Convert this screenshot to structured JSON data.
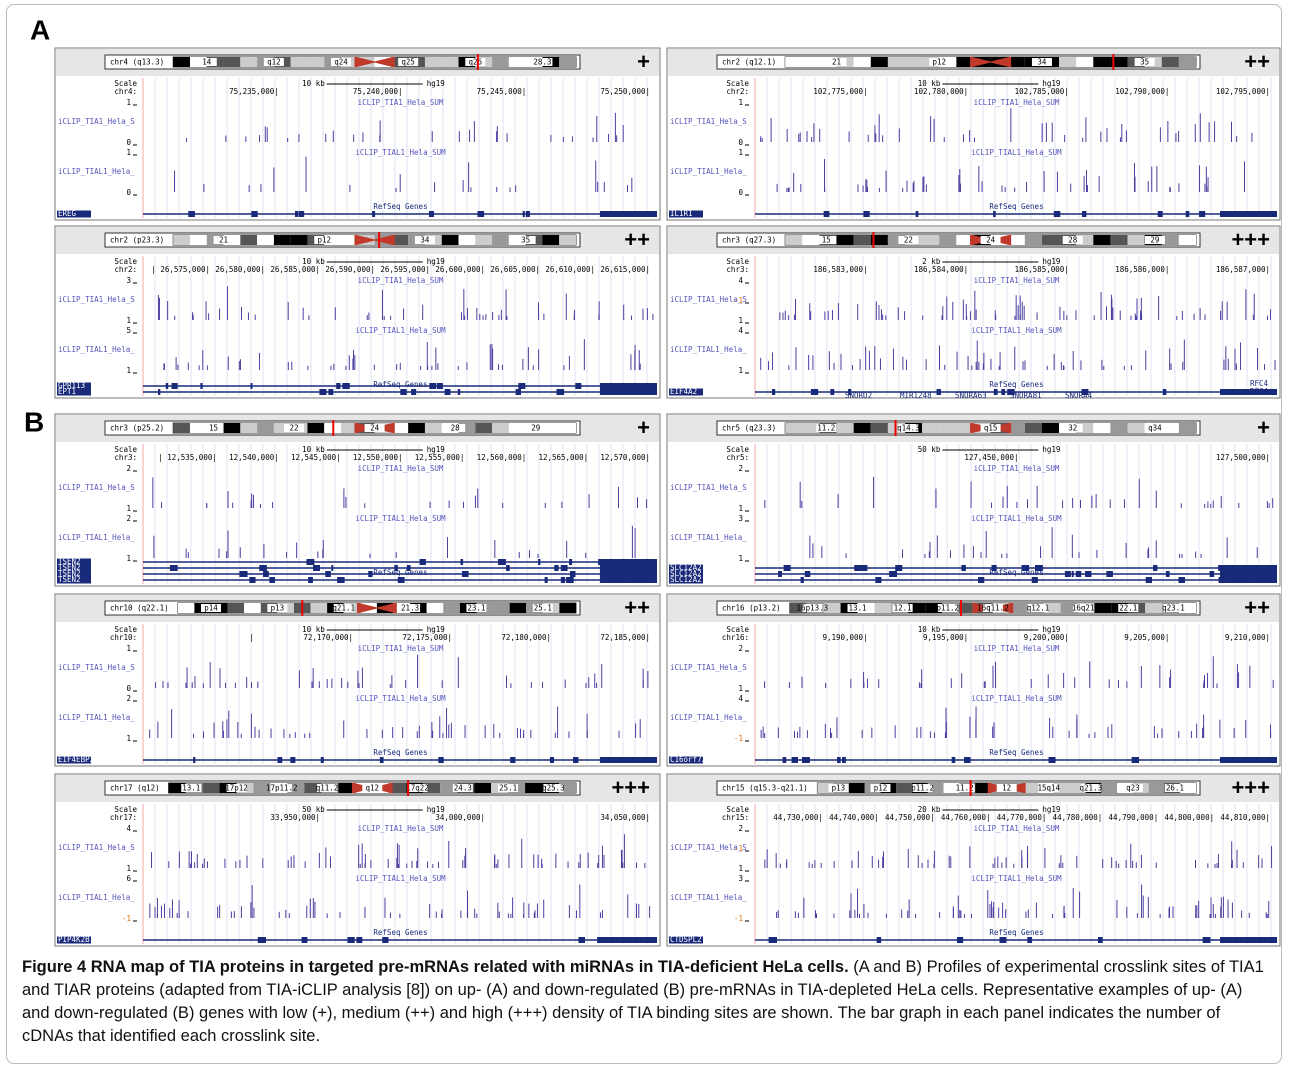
{
  "panel_labels": [
    "A",
    "B"
  ],
  "panels": [
    {
      "chrom": "chr4 (q13.3)",
      "density": "+",
      "bands": [
        "14",
        "q12",
        "q24",
        "q25",
        "q26",
        "28.3"
      ],
      "scale": "Scale",
      "scale_size": "10 kb",
      "assembly": "hg19",
      "chr": "chr4:",
      "positions": [
        "75,235,000|",
        "75,240,000|",
        "75,245,000|",
        "75,250,000|"
      ],
      "tracks": [
        {
          "name": "iCLIP_TIA1_Hela_SUM",
          "side": "iCLIP_TIA1_Hela_S",
          "axis": [
            "1",
            "0"
          ]
        },
        {
          "name": "iCLIP_TIAL1_Hela_SUM",
          "side": "iCLIP_TIAL1_Hela_",
          "axis": [
            "1",
            "0"
          ]
        }
      ],
      "refseq": "RefSeq Genes",
      "genes": [
        "EREG"
      ]
    },
    {
      "chrom": "chr2 (q12.1)",
      "density": "++",
      "bands": [
        "21",
        "p12",
        "34",
        "35"
      ],
      "scale": "Scale",
      "scale_size": "10 kb",
      "assembly": "hg19",
      "chr": "chr2:",
      "positions": [
        "102,775,000|",
        "102,780,000|",
        "102,785,000|",
        "102,790,000|",
        "102,795,000|"
      ],
      "tracks": [
        {
          "name": "iCLIP_TIA1_Hela_SUM",
          "side": "iCLIP_TIA1_Hela_S",
          "axis": [
            "1",
            "0"
          ]
        },
        {
          "name": "iCLIP_TIAL1_Hela_SUM",
          "side": "iCLIP_TIAL1_Hela_",
          "axis": [
            "1",
            "0"
          ]
        }
      ],
      "refseq": "RefSeq Genes",
      "genes": [
        "IL1R1"
      ]
    },
    {
      "chrom": "chr2 (p23.3)",
      "density": "++",
      "bands": [
        "21",
        "p12",
        "34",
        "35"
      ],
      "scale": "Scale",
      "scale_size": "10 kb",
      "assembly": "hg19",
      "chr": "chr2:",
      "positions": [
        "| 26,575,000|",
        "26,580,000|",
        "26,585,000|",
        "26,590,000|",
        "26,595,000|",
        "26,600,000|",
        "26,605,000|",
        "26,610,000|",
        "26,615,000|"
      ],
      "tracks": [
        {
          "name": "iCLIP_TIA1_Hela_SUM",
          "side": "iCLIP_TIA1_Hela_S",
          "axis": [
            "3",
            "1"
          ]
        },
        {
          "name": "iCLIP_TIAL1_Hela_SUM",
          "side": "iCLIP_TIAL1_Hela_",
          "axis": [
            "5",
            "1"
          ]
        }
      ],
      "refseq": "RefSeq Genes",
      "genes": [
        "GPR113",
        "EPT1"
      ]
    },
    {
      "chrom": "chr3 (q27.3)",
      "density": "+++",
      "bands": [
        "15",
        "22",
        "24",
        "28",
        "29"
      ],
      "scale": "Scale",
      "scale_size": "2 kb",
      "assembly": "hg19",
      "chr": "chr3:",
      "positions": [
        "186,583,000|",
        "186,584,000|",
        "186,585,000|",
        "186,586,000|",
        "186,587,000|"
      ],
      "tracks": [
        {
          "name": "iCLIP_TIA1_Hela_SUM",
          "side": "iCLIP_TIA1_Hela_S",
          "axis": [
            "4",
            "-1",
            "1"
          ]
        },
        {
          "name": "iCLIP_TIAL1_Hela_SUM",
          "side": "iCLIP_TIAL1_Hela_",
          "axis": [
            "4",
            "1"
          ]
        }
      ],
      "refseq": "RefSeq Genes",
      "genes": [
        "EIF4A2",
        "SNORD2",
        "MIR1248",
        "SNORA63",
        "SNORA81",
        "SNORA4",
        "RFC4",
        "RFC4"
      ]
    },
    {
      "chrom": "chr3 (p25.2)",
      "density": "+",
      "bands": [
        "15",
        "22",
        "24",
        "28",
        "29"
      ],
      "scale": "Scale",
      "scale_size": "10 kb",
      "assembly": "hg19",
      "chr": "chr3:",
      "positions": [
        "| 12,535,000|",
        "12,540,000|",
        "12,545,000|",
        "12,550,000|",
        "12,555,000|",
        "12,560,000|",
        "12,565,000|",
        "12,570,000|"
      ],
      "tracks": [
        {
          "name": "iCLIP_TIA1_Hela_SUM",
          "side": "iCLIP_TIA1_Hela_S",
          "axis": [
            "2",
            "1"
          ]
        },
        {
          "name": "iCLIP_TIAL1_Hela_SUM",
          "side": "iCLIP_TIAL1_Hela_",
          "axis": [
            "2",
            "1"
          ]
        }
      ],
      "refseq": "RefSeq Genes",
      "genes": [
        "TSEN2",
        "TSEN2",
        "TSEN2",
        "TSEN2"
      ]
    },
    {
      "chrom": "chr5 (q23.3)",
      "density": "+",
      "bands": [
        "11.2",
        "q14.3",
        "q15",
        "32",
        "q34"
      ],
      "scale": "Scale",
      "scale_size": "50 kb",
      "assembly": "hg19",
      "chr": "chr5:",
      "positions": [
        "127,450,000|",
        "127,500,000|"
      ],
      "tracks": [
        {
          "name": "iCLIP_TIA1_Hela_SUM",
          "side": "iCLIP_TIA1_Hela_S",
          "axis": [
            "2",
            "1"
          ]
        },
        {
          "name": "iCLIP_TIAL1_Hela_SUM",
          "side": "iCLIP_TIAL1_Hela_",
          "axis": [
            "3",
            "1"
          ]
        }
      ],
      "refseq": "RefSeq Genes",
      "genes": [
        "SLC12A2",
        "SLC12A2",
        "SLC12A2"
      ]
    },
    {
      "chrom": "chr10 (q22.1)",
      "density": "++",
      "bands": [
        "p14",
        "p13",
        "q21.1",
        "21.3",
        "23.1",
        "25.1"
      ],
      "scale": "Scale",
      "scale_size": "10 kb",
      "assembly": "hg19",
      "chr": "chr10:",
      "positions": [
        "|",
        "72,170,000|",
        "72,175,000|",
        "72,180,000|",
        "72,185,000|"
      ],
      "tracks": [
        {
          "name": "iCLIP_TIA1_Hela_SUM",
          "side": "iCLIP_TIA1_Hela_S",
          "axis": [
            "1",
            "0"
          ]
        },
        {
          "name": "iCLIP_TIAL1_Hela_SUM",
          "side": "iCLIP_TIAL1_Hela_",
          "axis": [
            "2",
            "1"
          ]
        }
      ],
      "refseq": "RefSeq Genes",
      "genes": [
        "EIF4EBP2"
      ]
    },
    {
      "chrom": "chr16 (p13.2)",
      "density": "++",
      "bands": [
        "16p13.3",
        "13.1",
        "12.1",
        "p11.2",
        "16q11.2",
        "q12.1",
        "16q21",
        "22.1",
        "q23.1"
      ],
      "scale": "Scale",
      "scale_size": "10 kb",
      "assembly": "hg19",
      "chr": "chr16:",
      "positions": [
        "9,190,000|",
        "9,195,000|",
        "9,200,000|",
        "9,205,000|",
        "9,210,000|"
      ],
      "tracks": [
        {
          "name": "iCLIP_TIA1_Hela_SUM",
          "side": "iCLIP_TIA1_Hela_S",
          "axis": [
            "2",
            "1"
          ]
        },
        {
          "name": "iCLIP_TIAL1_Hela_SUM",
          "side": "iCLIP_TIAL1_Hela_",
          "axis": [
            "4",
            "-1"
          ]
        }
      ],
      "refseq": "RefSeq Genes",
      "genes": [
        "C16orf72"
      ]
    },
    {
      "chrom": "chr17 (q12)",
      "density": "+++",
      "bands": [
        "13.1",
        "17p12",
        "17p11.2",
        "q11.2",
        "q12",
        "17q22",
        "24.3",
        "25.1",
        "q25.3"
      ],
      "scale": "Scale",
      "scale_size": "50 kb",
      "assembly": "hg19",
      "chr": "chr17:",
      "positions": [
        "33,950,000|",
        "34,000,000|",
        "34,050,000|"
      ],
      "tracks": [
        {
          "name": "iCLIP_TIA1_Hela_SUM",
          "side": "iCLIP_TIA1_Hela_S",
          "axis": [
            "4",
            "1"
          ]
        },
        {
          "name": "iCLIP_TIAL1_Hela_SUM",
          "side": "iCLIP_TIAL1_Hela_",
          "axis": [
            "6",
            "-1"
          ]
        }
      ],
      "refseq": "RefSeq Genes",
      "genes": [
        "PIP4K2B"
      ]
    },
    {
      "chrom": "chr15 (q15.3-q21.1)",
      "density": "+++",
      "bands": [
        "p13",
        "p12",
        "p11.2",
        "11.2",
        "12",
        "15q14",
        "q21.3",
        "q23",
        "26.1"
      ],
      "scale": "Scale",
      "scale_size": "20 kb",
      "assembly": "hg19",
      "chr": "chr15:",
      "positions": [
        "44,730,000|",
        "44,740,000|",
        "44,750,000|",
        "44,760,000|",
        "44,770,000|",
        "44,780,000|",
        "44,790,000|",
        "44,800,000|",
        "44,810,000|"
      ],
      "tracks": [
        {
          "name": "iCLIP_TIA1_Hela_SUM",
          "side": "iCLIP_TIA1_Hela_S",
          "axis": [
            "2",
            "-1",
            "1"
          ]
        },
        {
          "name": "iCLIP_TIAL1_Hela_SUM",
          "side": "iCLIP_TIAL1_Hela_",
          "axis": [
            "3",
            "-1"
          ]
        }
      ],
      "refseq": "RefSeq Genes",
      "genes": [
        "CTDSPL2"
      ]
    }
  ],
  "caption": {
    "title": "Figure 4 RNA map of TIA proteins in targeted pre-mRNAs related with miRNAs in TIA-deficient HeLa cells.",
    "body": "(A and B) Profiles of experimental crosslink sites of TIA1 and TIAR proteins (adapted from TIA-iCLIP analysis [8]) on up- (A) and down-regulated (B) pre-mRNAs in TIA-depleted HeLa cells. Representative examples of up- (A) and down-regulated (B) genes with low (+), medium (++) and high (+++) density of TIA binding sites are shown. The bar graph in each panel indicates the number of cDNAs that identified each crosslink site."
  }
}
